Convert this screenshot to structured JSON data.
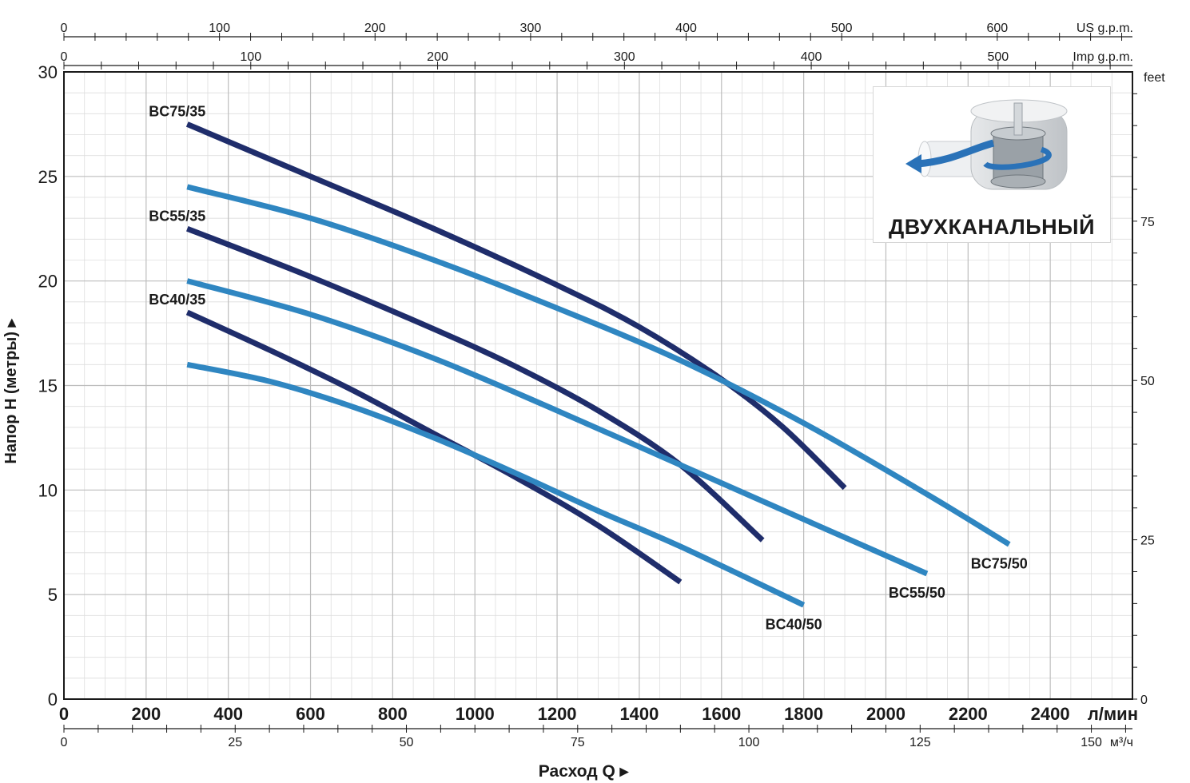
{
  "chart_data": {
    "type": "line",
    "xlabel": "Расход Q",
    "ylabel": "Напор Н (метры)",
    "x_unit": "л/мин",
    "xlim": [
      0,
      2600
    ],
    "ylim": [
      0,
      30
    ],
    "x_ticks": [
      0,
      200,
      400,
      600,
      800,
      1000,
      1200,
      1400,
      1600,
      1800,
      2000,
      2200,
      2400
    ],
    "y_ticks": [
      0,
      5,
      10,
      15,
      20,
      25,
      30
    ],
    "grid": true,
    "secondary_axes": {
      "us_gpm": {
        "unit": "US g.p.m.",
        "ticks": [
          0,
          100,
          200,
          300,
          400,
          500,
          600
        ]
      },
      "imp_gpm": {
        "unit": "Imp g.p.m.",
        "ticks": [
          0,
          100,
          200,
          300,
          400,
          500
        ]
      },
      "m3h": {
        "unit": "м³/ч",
        "ticks": [
          0,
          25,
          50,
          75,
          100,
          125,
          150
        ]
      },
      "feet": {
        "unit": "feet",
        "ticks": [
          0,
          25,
          50,
          75
        ]
      }
    },
    "series": [
      {
        "name": "BC75/35",
        "color": "#1f2d6b",
        "label_pos": "start",
        "x": [
          300,
          600,
          900,
          1200,
          1400,
          1600,
          1750,
          1900
        ],
        "y": [
          27.5,
          25.0,
          22.5,
          19.8,
          17.8,
          15.3,
          13.0,
          10.1
        ]
      },
      {
        "name": "BC75/50",
        "color": "#2f86c1",
        "label_pos": "end",
        "x": [
          300,
          600,
          900,
          1200,
          1500,
          1800,
          2100,
          2300
        ],
        "y": [
          24.5,
          23.0,
          21.0,
          18.7,
          16.2,
          13.2,
          9.8,
          7.4
        ]
      },
      {
        "name": "BC55/35",
        "color": "#1f2d6b",
        "label_pos": "start",
        "x": [
          300,
          600,
          900,
          1100,
          1300,
          1500,
          1700
        ],
        "y": [
          22.5,
          20.2,
          17.7,
          15.9,
          13.8,
          11.2,
          7.6
        ]
      },
      {
        "name": "BC55/50",
        "color": "#2f86c1",
        "label_pos": "end",
        "x": [
          300,
          600,
          900,
          1200,
          1500,
          1800,
          2100
        ],
        "y": [
          20.0,
          18.4,
          16.3,
          13.8,
          11.2,
          8.6,
          6.0
        ]
      },
      {
        "name": "BC40/35",
        "color": "#1f2d6b",
        "label_pos": "start",
        "x": [
          300,
          500,
          700,
          900,
          1100,
          1300,
          1500
        ],
        "y": [
          18.5,
          16.7,
          14.8,
          12.7,
          10.6,
          8.3,
          5.6
        ]
      },
      {
        "name": "BC40/50",
        "color": "#2f86c1",
        "label_pos": "end",
        "x": [
          300,
          500,
          700,
          900,
          1100,
          1300,
          1500,
          1800
        ],
        "y": [
          16.0,
          15.2,
          14.0,
          12.5,
          10.8,
          9.0,
          7.3,
          4.5
        ]
      }
    ]
  },
  "inset": {
    "title": "ДВУХКАНАЛЬНЫЙ"
  }
}
